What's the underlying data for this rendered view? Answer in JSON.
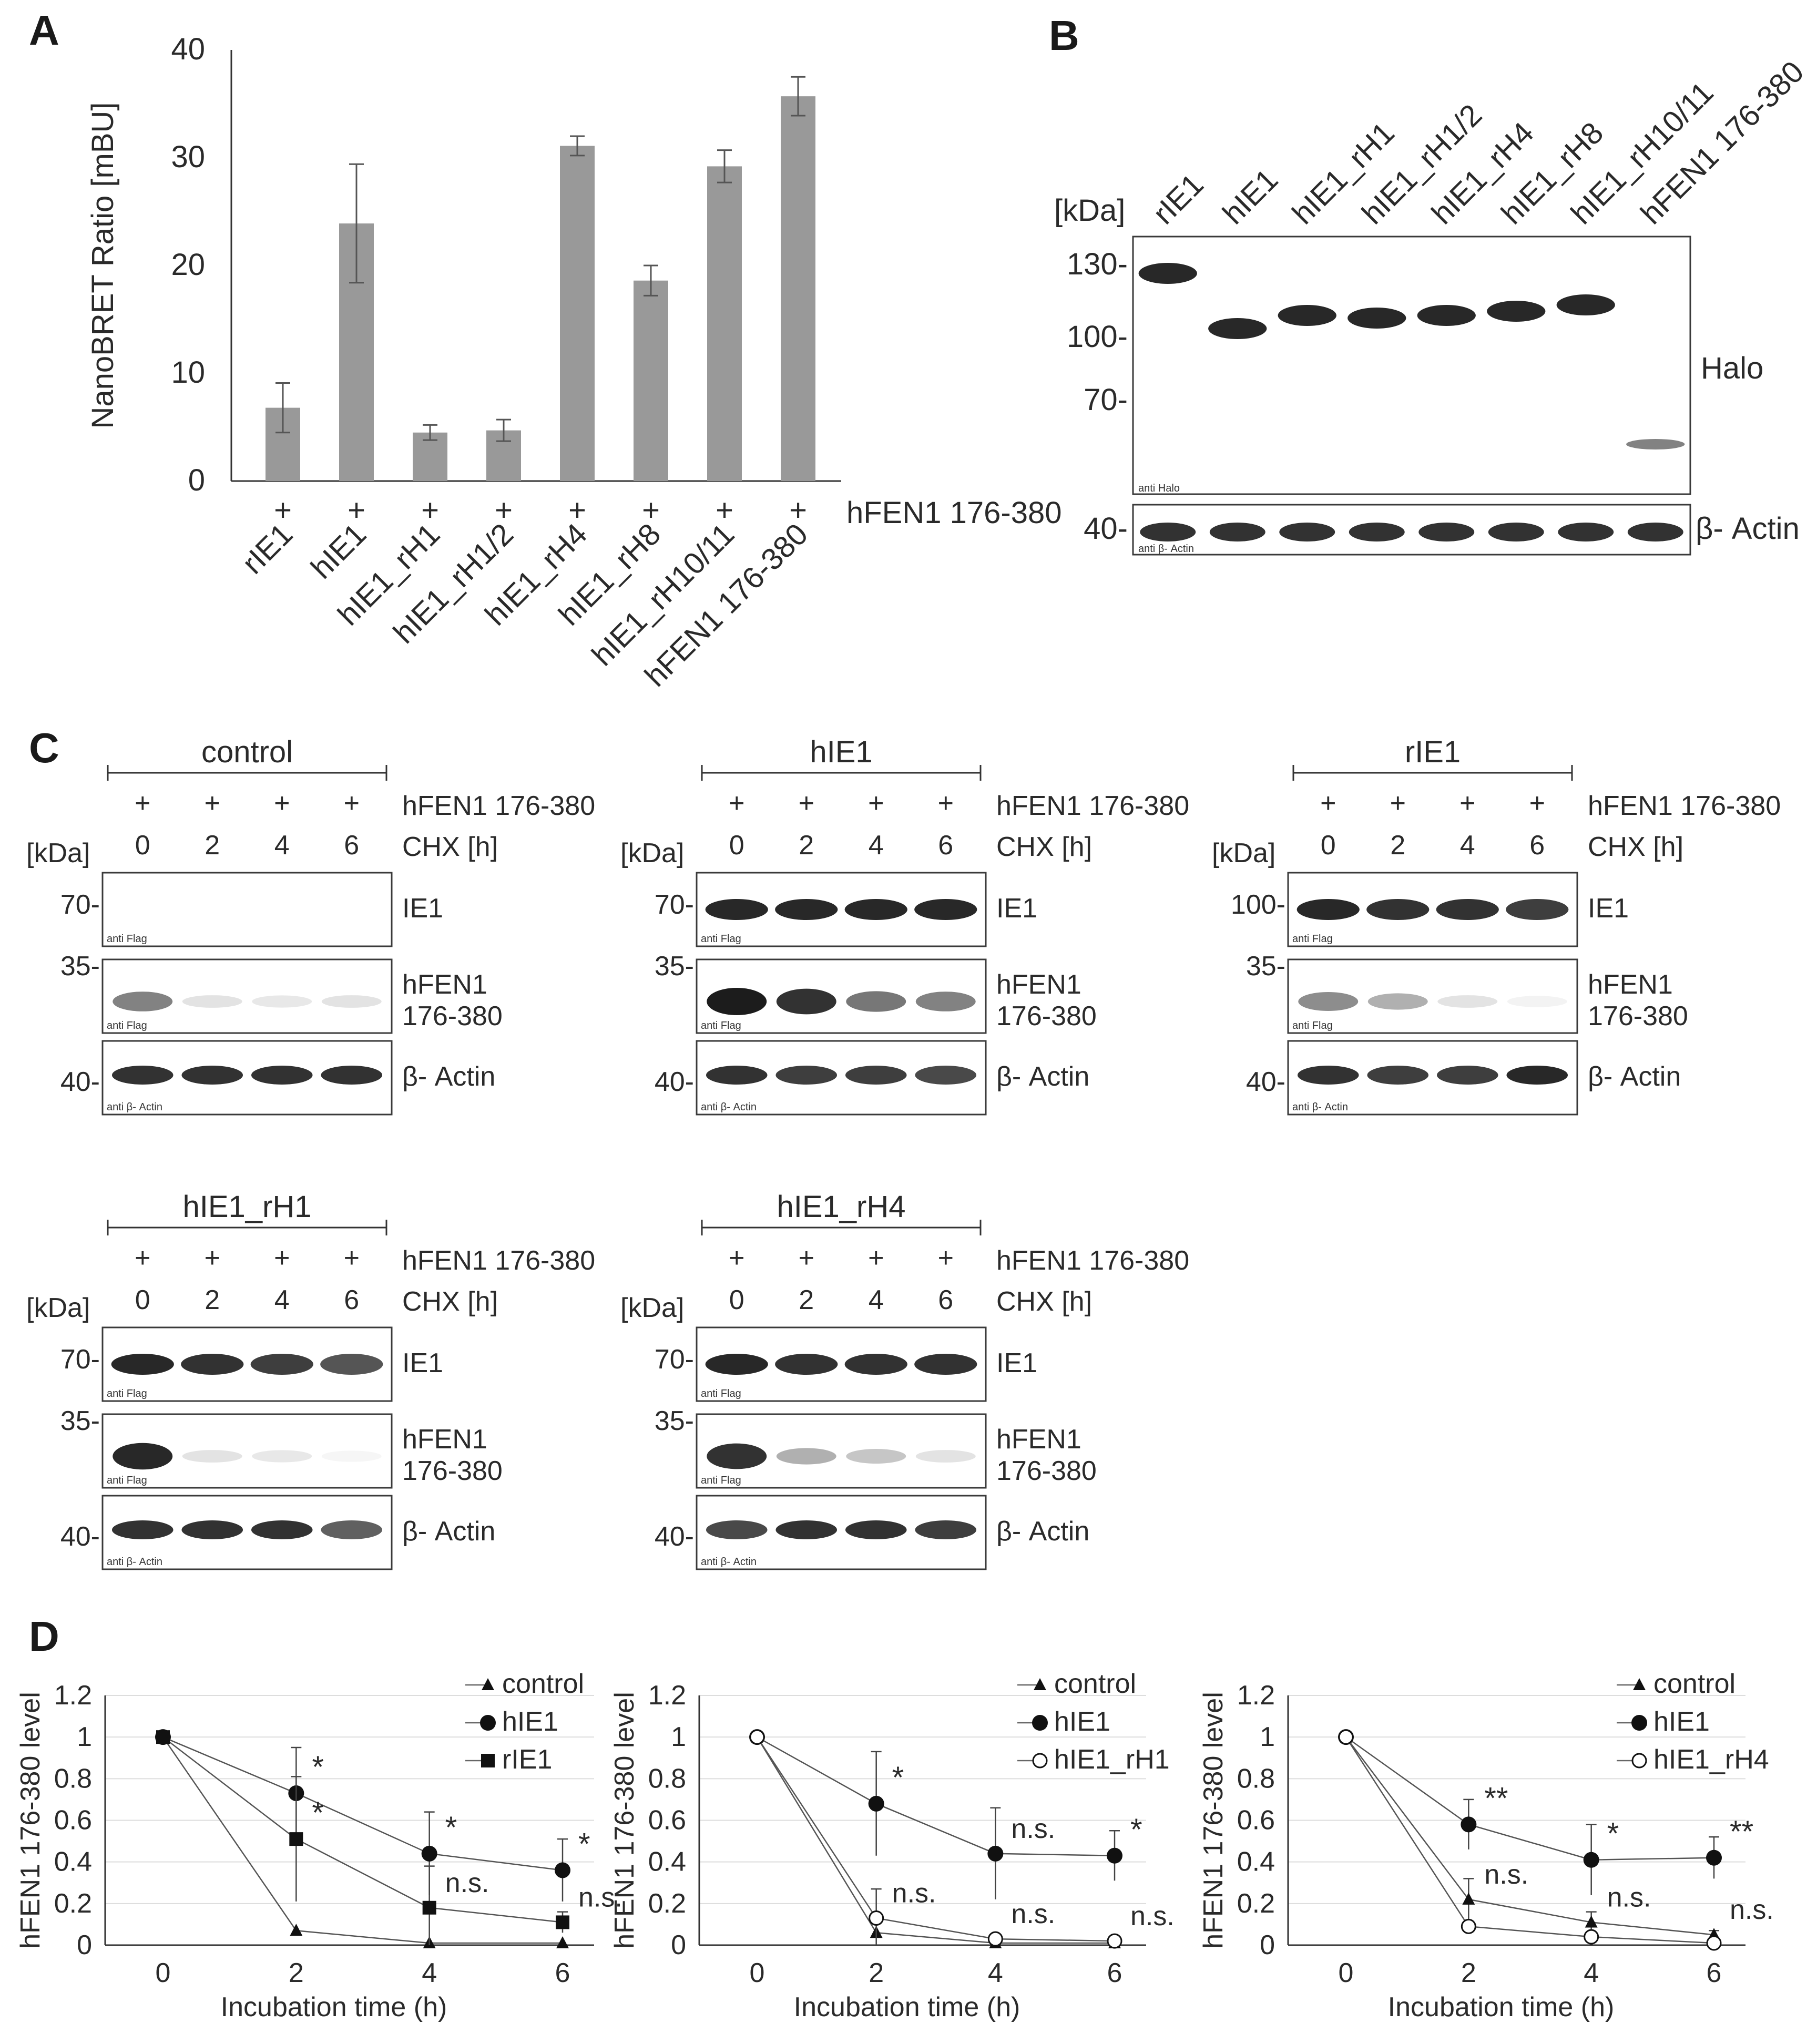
{
  "panel_labels": {
    "A": "A",
    "B": "B",
    "C": "C",
    "D": "D"
  },
  "common": {
    "plus": "+",
    "kda": "[kDa]",
    "hfen1": "hFEN1 176-380",
    "hfen1_l1": "hFEN1",
    "hfen1_l2": "176-380",
    "chx": "CHX [h]",
    "ie1": "IE1",
    "actin": "β- Actin",
    "halo": "Halo",
    "anti_flag": "anti Flag",
    "anti_actin": "anti β- Actin",
    "anti_halo": "anti Halo",
    "ns": "n.s."
  },
  "colors": {
    "bar": "#999999",
    "band": "#1c1c1c",
    "line": "#555555"
  },
  "chart_data": [
    {
      "type": "bar",
      "panel": "A",
      "categories": [
        "rIE1",
        "hIE1",
        "hIE1_rH1",
        "hIE1_rH1/2",
        "hIE1_rH4",
        "hIE1_rH8",
        "hIE1_rH10/11",
        "hFEN1 176-380"
      ],
      "values": [
        6.8,
        23.9,
        4.5,
        4.7,
        31.1,
        18.6,
        29.2,
        35.7
      ],
      "errors": [
        2.3,
        5.5,
        0.7,
        1.0,
        0.9,
        1.4,
        1.5,
        1.8
      ],
      "ylabel": "NanoBRET Ratio [mBU]",
      "ylim": [
        0,
        40
      ],
      "yticks": [
        "0",
        "10",
        "20",
        "30",
        "40"
      ],
      "row_label": "hFEN1 176-380"
    },
    {
      "type": "line",
      "panel": "D-left",
      "x": [
        0,
        2,
        4,
        6
      ],
      "xticks": [
        "0",
        "2",
        "4",
        "6"
      ],
      "yticks": [
        "0",
        "0.2",
        "0.4",
        "0.6",
        "0.8",
        "1",
        "1.2"
      ],
      "ylim": [
        0,
        1.2
      ],
      "xlabel": "Incubation time (h)",
      "ylabel": "hFEN1 176-380 level",
      "legend": "top-right",
      "series": [
        {
          "name": "control",
          "marker": "triangle",
          "values": [
            1,
            0.07,
            0.01,
            0.01
          ],
          "errors": [
            0,
            0,
            0,
            0
          ],
          "labels": [
            "",
            "",
            "",
            ""
          ]
        },
        {
          "name": "hIE1",
          "marker": "circle",
          "values": [
            1,
            0.73,
            0.44,
            0.36
          ],
          "errors": [
            0,
            0.22,
            0.2,
            0.15
          ],
          "labels": [
            "",
            "*",
            "*",
            "*"
          ]
        },
        {
          "name": "rIE1",
          "marker": "square",
          "values": [
            1,
            0.51,
            0.18,
            0.11
          ],
          "errors": [
            0,
            0.3,
            0.2,
            0.05
          ],
          "labels": [
            "",
            "*",
            "n.s.",
            "n.s."
          ]
        }
      ]
    },
    {
      "type": "line",
      "panel": "D-middle",
      "x": [
        0,
        2,
        4,
        6
      ],
      "xticks": [
        "0",
        "2",
        "4",
        "6"
      ],
      "yticks": [
        "0",
        "0.2",
        "0.4",
        "0.6",
        "0.8",
        "1",
        "1.2"
      ],
      "ylim": [
        0,
        1.2
      ],
      "xlabel": "Incubation time (h)",
      "ylabel": "hFEN1 176-380 level",
      "legend": "top-right",
      "series": [
        {
          "name": "control",
          "marker": "triangle",
          "values": [
            1,
            0.06,
            0.01,
            0.01
          ],
          "errors": [
            0,
            0,
            0,
            0
          ],
          "labels": [
            "",
            "",
            "",
            ""
          ]
        },
        {
          "name": "hIE1",
          "marker": "circle",
          "values": [
            1,
            0.68,
            0.44,
            0.43
          ],
          "errors": [
            0,
            0.25,
            0.22,
            0.12
          ],
          "labels": [
            "",
            "*",
            "n.s.",
            "*"
          ]
        },
        {
          "name": "hIE1_rH1",
          "marker": "open-circle",
          "values": [
            1,
            0.13,
            0.03,
            0.02
          ],
          "errors": [
            0,
            0.14,
            0.02,
            0.01
          ],
          "labels": [
            "",
            "n.s.",
            "n.s.",
            "n.s."
          ]
        }
      ]
    },
    {
      "type": "line",
      "panel": "D-right",
      "x": [
        0,
        2,
        4,
        6
      ],
      "xticks": [
        "0",
        "2",
        "4",
        "6"
      ],
      "yticks": [
        "0",
        "0.2",
        "0.4",
        "0.6",
        "0.8",
        "1",
        "1.2"
      ],
      "ylim": [
        0,
        1.2
      ],
      "xlabel": "Incubation time (h)",
      "ylabel": "hFEN1 176-380 level",
      "legend": "top-right",
      "series": [
        {
          "name": "control",
          "marker": "triangle",
          "values": [
            1,
            0.22,
            0.11,
            0.05
          ],
          "errors": [
            0,
            0.1,
            0.05,
            0.02
          ],
          "labels": [
            "",
            "n.s.",
            "n.s.",
            "n.s."
          ]
        },
        {
          "name": "hIE1",
          "marker": "circle",
          "values": [
            1,
            0.58,
            0.41,
            0.42
          ],
          "errors": [
            0,
            0.12,
            0.17,
            0.1
          ],
          "labels": [
            "",
            "**",
            "*",
            "**"
          ]
        },
        {
          "name": "hIE1_rH4",
          "marker": "open-circle",
          "values": [
            1,
            0.09,
            0.04,
            0.01
          ],
          "errors": [
            0,
            0.02,
            0.02,
            0.01
          ],
          "labels": [
            "",
            "",
            "",
            ""
          ]
        }
      ]
    }
  ],
  "blot_b": {
    "lanes": [
      "rIE1",
      "hIE1",
      "hIE1_rH1",
      "hIE1_rH1/2",
      "hIE1_rH4",
      "hIE1_rH8",
      "hIE1_rH10/11",
      "hFEN1 176-380"
    ],
    "markers": [
      "130-",
      "100-",
      "70-",
      "40-"
    ]
  },
  "blot_c": [
    {
      "title": "control",
      "ie1_marker": "70-",
      "fen_marker": "35-",
      "actin_marker": "40-",
      "times": [
        "0",
        "2",
        "4",
        "6"
      ],
      "ie1_band": [
        0,
        0,
        0,
        0
      ],
      "fen_band": [
        0.55,
        0.12,
        0.1,
        0.12
      ],
      "actin_band": [
        0.9,
        0.9,
        0.9,
        0.9
      ]
    },
    {
      "title": "hIE1",
      "ie1_marker": "70-",
      "fen_marker": "35-",
      "actin_marker": "40-",
      "times": [
        "0",
        "2",
        "4",
        "6"
      ],
      "ie1_band": [
        0.95,
        0.95,
        0.95,
        0.95
      ],
      "fen_band": [
        1.0,
        0.9,
        0.6,
        0.55
      ],
      "actin_band": [
        0.9,
        0.85,
        0.85,
        0.8
      ]
    },
    {
      "title": "rIE1",
      "ie1_marker": "100-",
      "fen_marker": "35-",
      "actin_marker": "40-",
      "times": [
        "0",
        "2",
        "4",
        "6"
      ],
      "ie1_band": [
        0.95,
        0.9,
        0.9,
        0.85
      ],
      "fen_band": [
        0.5,
        0.35,
        0.12,
        0.05
      ],
      "actin_band": [
        0.9,
        0.85,
        0.85,
        0.95
      ]
    },
    {
      "title": "hIE1_rH1",
      "ie1_marker": "70-",
      "fen_marker": "35-",
      "actin_marker": "40-",
      "times": [
        "0",
        "2",
        "4",
        "6"
      ],
      "ie1_band": [
        0.95,
        0.9,
        0.85,
        0.75
      ],
      "fen_band": [
        0.95,
        0.12,
        0.1,
        0.04
      ],
      "actin_band": [
        0.9,
        0.9,
        0.9,
        0.7
      ]
    },
    {
      "title": "hIE1_rH4",
      "ie1_marker": "70-",
      "fen_marker": "35-",
      "actin_marker": "40-",
      "times": [
        "0",
        "2",
        "4",
        "6"
      ],
      "ie1_band": [
        0.95,
        0.9,
        0.9,
        0.9
      ],
      "fen_band": [
        0.9,
        0.35,
        0.25,
        0.12
      ],
      "actin_band": [
        0.8,
        0.9,
        0.9,
        0.85
      ]
    }
  ]
}
